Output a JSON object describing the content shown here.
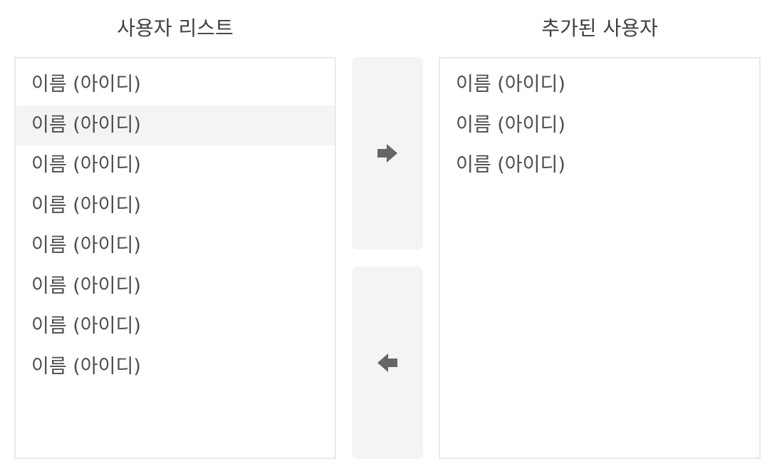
{
  "left_panel": {
    "title": "사용자 리스트",
    "items": [
      {
        "label": "이름 (아이디)",
        "selected": false
      },
      {
        "label": "이름 (아이디)",
        "selected": true
      },
      {
        "label": "이름 (아이디)",
        "selected": false
      },
      {
        "label": "이름 (아이디)",
        "selected": false
      },
      {
        "label": "이름 (아이디)",
        "selected": false
      },
      {
        "label": "이름 (아이디)",
        "selected": false
      },
      {
        "label": "이름 (아이디)",
        "selected": false
      },
      {
        "label": "이름 (아이디)",
        "selected": false
      }
    ]
  },
  "right_panel": {
    "title": "추가된 사용자",
    "items": [
      {
        "label": "이름 (아이디)"
      },
      {
        "label": "이름 (아이디)"
      },
      {
        "label": "이름 (아이디)"
      }
    ]
  },
  "controls": {
    "add_icon": "arrow-right-icon",
    "remove_icon": "arrow-left-icon",
    "icon_color": "#666666",
    "button_bg": "#f4f4f4"
  },
  "colors": {
    "selected_row": "#f4f4f4",
    "border": "#e9e9e9",
    "text": "#4d4d4d"
  }
}
